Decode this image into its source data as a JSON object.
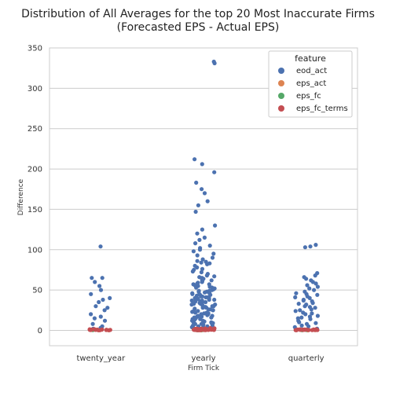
{
  "chart_data": {
    "type": "scatter",
    "title_lines": [
      "Distribution of All Averages for the top 20 Most Inaccurate Firms",
      "(Forecasted EPS - Actual EPS)"
    ],
    "xlabel": "Firm Tick",
    "ylabel": "Difference",
    "categories": [
      "twenty_year",
      "yearly",
      "quarterly"
    ],
    "yticks": [
      0,
      50,
      100,
      150,
      200,
      250,
      300,
      350
    ],
    "ylim": [
      -19,
      350
    ],
    "grid": true,
    "legend": {
      "title": "feature",
      "placement": "top-right",
      "entries": [
        "eod_act",
        "eps_act",
        "eps_fc",
        "eps_fc_terms"
      ]
    },
    "series": [
      {
        "name": "eod_act",
        "color": "#4c72b0",
        "points": {
          "twenty_year": [
            104,
            65,
            65,
            60,
            55,
            50,
            45,
            40,
            38,
            35,
            30,
            28,
            25,
            20,
            17,
            15,
            12,
            8,
            5,
            3,
            2,
            1
          ],
          "yearly": [
            333,
            331,
            212,
            206,
            196,
            183,
            175,
            170,
            160,
            155,
            147,
            130,
            125,
            120,
            115,
            112,
            108,
            105,
            102,
            100,
            98,
            95,
            93,
            90,
            88,
            86,
            85,
            84,
            83,
            82,
            80,
            78,
            76,
            75,
            73,
            72,
            70,
            68,
            67,
            66,
            65,
            64,
            63,
            62,
            61,
            60,
            59,
            58,
            57,
            56,
            55,
            54,
            53,
            52,
            51,
            50,
            49,
            48,
            47,
            46,
            45,
            44,
            43,
            42,
            41,
            40,
            39,
            38,
            37,
            36,
            35,
            34,
            33,
            32,
            31,
            30,
            29,
            28,
            27,
            26,
            25,
            24,
            23,
            22,
            21,
            20,
            19,
            18,
            17,
            16,
            15,
            14,
            13,
            12,
            11,
            10,
            9,
            8,
            7,
            6,
            5,
            4,
            3,
            2,
            1,
            48,
            44,
            40,
            36,
            32,
            28,
            24,
            20,
            16,
            12,
            8,
            4,
            46,
            42,
            38,
            34,
            30,
            26,
            22,
            18,
            14,
            10,
            6,
            2,
            57,
            53,
            49,
            45,
            41,
            37,
            33,
            29,
            25,
            21,
            17,
            13,
            9,
            5,
            1
          ],
          "quarterly": [
            106,
            104,
            103,
            71,
            68,
            66,
            64,
            62,
            60,
            58,
            56,
            54,
            52,
            50,
            48,
            46,
            44,
            42,
            40,
            38,
            36,
            34,
            32,
            30,
            28,
            26,
            24,
            22,
            20,
            18,
            17,
            15,
            14,
            12,
            10,
            8,
            6,
            4,
            2,
            45,
            41,
            37,
            33,
            29,
            25,
            21,
            16,
            9,
            5
          ]
        }
      },
      {
        "name": "eps_act",
        "color": "#dd8452",
        "points": {
          "twenty_year": [
            0.4,
            0.2
          ],
          "yearly": [
            0.5,
            0.3,
            0.1
          ],
          "quarterly": [
            0.3,
            0.1
          ]
        }
      },
      {
        "name": "eps_fc",
        "color": "#55a868",
        "points": {
          "twenty_year": [
            0.6,
            0.3
          ],
          "yearly": [
            0.6,
            0.2,
            0.4
          ],
          "quarterly": [
            0.5,
            0.2
          ]
        }
      },
      {
        "name": "eps_fc_terms",
        "color": "#c44e52",
        "points": {
          "twenty_year": [
            1,
            0.5,
            0.8,
            0.2,
            1.2,
            0.6,
            0.9,
            0.3,
            1.5,
            0.4,
            0.7,
            1.1,
            0.5,
            0.2,
            1.3,
            0.8,
            0.6,
            1.0
          ],
          "yearly": [
            2,
            1.5,
            1,
            0.5,
            0.8,
            1.2,
            1.8,
            0.3,
            0.6,
            1.4,
            2.2,
            0.9,
            0.4,
            1.6,
            1.1,
            0.7,
            2.5,
            0.2,
            1.3,
            0.5,
            1.9,
            0.8,
            1.0,
            2.8,
            0.6,
            1.5,
            0.3,
            1.2,
            0.9,
            2.0,
            1.7,
            0.4,
            0.7,
            1.1,
            2.3,
            0.6,
            1.4,
            0.8,
            1.6,
            0.5
          ],
          "quarterly": [
            1,
            0.5,
            0.8,
            0.3,
            1.2,
            0.6,
            0.9,
            0.4,
            1.4,
            0.7,
            0.5,
            1.1,
            0.3,
            0.8,
            1.0,
            0.6,
            1.3,
            0.4,
            0.9,
            0.7,
            0.5,
            1.2
          ]
        }
      }
    ]
  }
}
